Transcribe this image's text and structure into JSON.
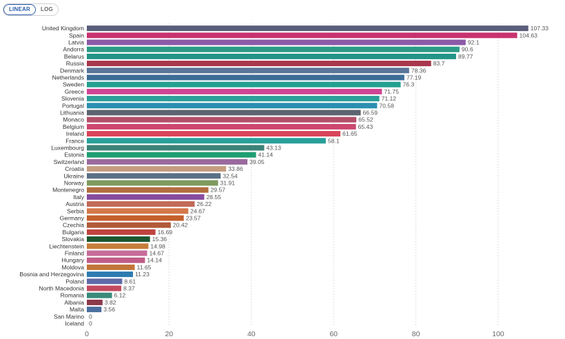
{
  "scale_toggle": {
    "linear_label": "LINEAR",
    "log_label": "LOG",
    "selected": "LINEAR"
  },
  "chart_data": {
    "type": "bar",
    "orientation": "horizontal",
    "title": "",
    "xlabel": "",
    "ylabel": "",
    "xlim": [
      0,
      110
    ],
    "x_ticks": [
      "0",
      "20",
      "40",
      "60",
      "80",
      "100"
    ],
    "grid": "vertical dashed",
    "categories": [
      "United Kingdom",
      "Spain",
      "Latvia",
      "Andorra",
      "Belarus",
      "Russia",
      "Denmark",
      "Netherlands",
      "Sweden",
      "Greece",
      "Slovenia",
      "Portugal",
      "Lithuania",
      "Monaco",
      "Belgium",
      "Ireland",
      "France",
      "Luxembourg",
      "Estonia",
      "Switzerland",
      "Croatia",
      "Ukraine",
      "Norway",
      "Montenegro",
      "Italy",
      "Austria",
      "Serbia",
      "Germany",
      "Czechia",
      "Bulgaria",
      "Slovakia",
      "Liechtenstein",
      "Finland",
      "Hungary",
      "Moldova",
      "Bosnia and Herzegovina",
      "Poland",
      "North Macedonia",
      "Romania",
      "Albania",
      "Malta",
      "San Marino",
      "Iceland"
    ],
    "values": [
      107.33,
      104.63,
      92.1,
      90.6,
      89.77,
      83.7,
      78.36,
      77.19,
      76.3,
      71.75,
      71.12,
      70.58,
      66.59,
      65.52,
      65.43,
      61.65,
      58.1,
      43.13,
      41.14,
      39.05,
      33.86,
      32.54,
      31.91,
      29.57,
      28.55,
      26.22,
      24.67,
      23.57,
      20.42,
      16.69,
      15.36,
      14.98,
      14.67,
      14.14,
      11.65,
      11.23,
      8.61,
      8.37,
      6.12,
      3.82,
      3.56,
      0,
      0
    ],
    "value_labels": [
      "107.33",
      "104.63",
      "92.1",
      "90.6",
      "89.77",
      "83.7",
      "78.36",
      "77.19",
      "76.3",
      "71.75",
      "71.12",
      "70.58",
      "66.59",
      "65.52",
      "65.43",
      "61.65",
      "58.1",
      "43.13",
      "41.14",
      "39.05",
      "33.86",
      "32.54",
      "31.91",
      "29.57",
      "28.55",
      "26.22",
      "24.67",
      "23.57",
      "20.42",
      "16.69",
      "15.36",
      "14.98",
      "14.67",
      "14.14",
      "11.65",
      "11.23",
      "8.61",
      "8.37",
      "6.12",
      "3.82",
      "3.56",
      "0",
      "0"
    ],
    "colors": [
      "#5b5e7a",
      "#c8336f",
      "#8b5aa8",
      "#2c9a86",
      "#239486",
      "#a8384e",
      "#5a7599",
      "#3d6d96",
      "#23a091",
      "#cf4593",
      "#2d9f99",
      "#2a8fb0",
      "#5d6470",
      "#b3506a",
      "#cc4870",
      "#d9455a",
      "#29a09a",
      "#3b8377",
      "#1f9e73",
      "#9a6a9e",
      "#c49d80",
      "#5b6f85",
      "#7e9a5e",
      "#b16e3e",
      "#874c9e",
      "#c16a58",
      "#d4784a",
      "#c35f2a",
      "#b05a3a",
      "#c0433f",
      "#1d5630",
      "#c77e3a",
      "#c86c98",
      "#c05c87",
      "#c2753a",
      "#2d7bb0",
      "#5f6aa8",
      "#c24a5e",
      "#3a8a7a",
      "#8c3a4a",
      "#4a6fa0",
      "#888888",
      "#888888"
    ]
  }
}
